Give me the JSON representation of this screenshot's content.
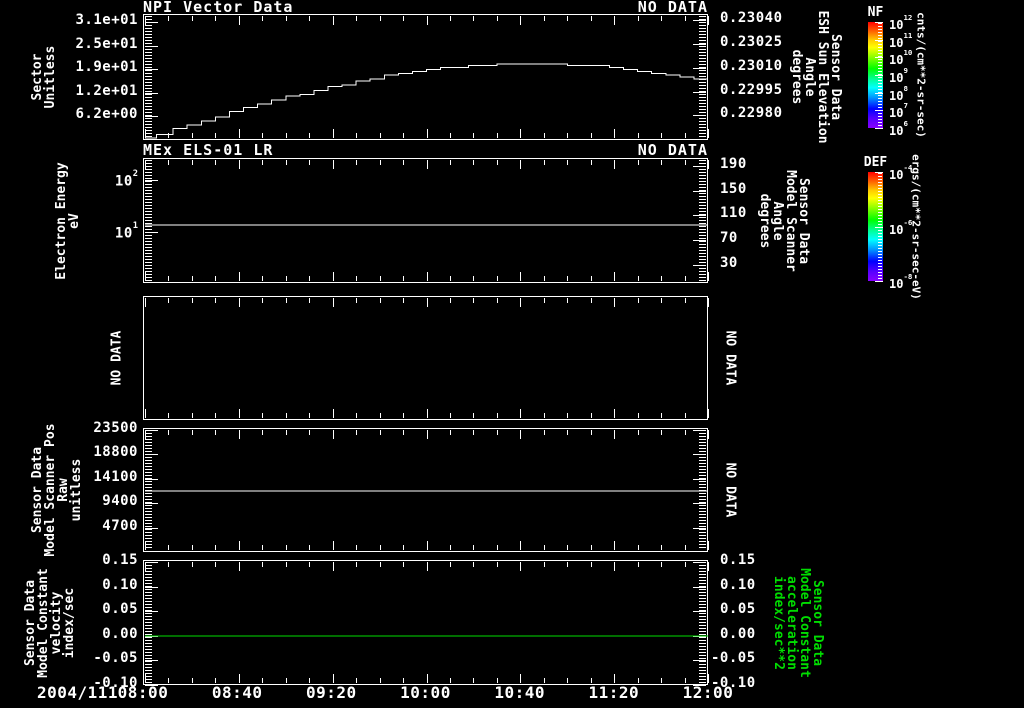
{
  "colors": {
    "fg": "#ffffff",
    "bg": "#000000",
    "accent_green": "#00dd00"
  },
  "panels": [
    {
      "id": "npi-vector-data",
      "title": "NPI Vector Data",
      "status_right": "NO DATA",
      "left_axis_title_lines": [
        "Sector",
        "Unitless"
      ],
      "right_axis_title_lines": [
        "Sensor Data",
        "ESH Sun Elevation",
        "Angle",
        "degrees"
      ],
      "left_tick_labels": [
        "3.1e+01",
        "2.5e+01",
        "1.9e+01",
        "1.2e+01",
        "6.2e+00"
      ],
      "right_tick_labels": [
        "0.23040",
        "0.23025",
        "0.23010",
        "0.22995",
        "0.22980"
      ]
    },
    {
      "id": "mex-els-01-lr",
      "title": "MEx ELS-01 LR",
      "status_right": "NO DATA",
      "left_axis_title_lines": [
        "Electron Energy",
        "eV"
      ],
      "right_axis_title_lines": [
        "Sensor Data",
        "Model Scanner",
        "Angle",
        "degrees"
      ],
      "left_tick_labels": [
        "10^2",
        "10^1"
      ],
      "right_tick_labels": [
        "190",
        "150",
        "110",
        "70",
        "30"
      ]
    },
    {
      "id": "no-data-panel",
      "left_rotated_status": "NO DATA",
      "right_rotated_status": "NO DATA"
    },
    {
      "id": "model-scanner-pos",
      "left_axis_title_lines": [
        "Sensor Data",
        "Model Scanner Pos",
        "Raw",
        "unitless"
      ],
      "left_tick_labels": [
        "23500",
        "18800",
        "14100",
        "9400",
        "4700"
      ],
      "right_rotated_status": "NO DATA"
    },
    {
      "id": "model-constant",
      "left_axis_title_lines": [
        "Sensor Data",
        "Model Constant",
        "velocity",
        "index/sec"
      ],
      "right_axis_title_lines": [
        "Sensor Data",
        "Model Constant",
        "acceleration",
        "index/sec**2"
      ],
      "right_axis_title_green": true,
      "left_tick_labels": [
        "0.15",
        "0.10",
        "0.05",
        "0.00",
        "-0.05",
        "-0.10"
      ],
      "right_tick_labels": [
        "0.15",
        "0.10",
        "0.05",
        "0.00",
        "-0.05",
        "-0.10"
      ]
    }
  ],
  "colorbars": [
    {
      "title": "NF",
      "tick_labels": [
        "10^12",
        "10^11",
        "10^10",
        "10^9",
        "10^8",
        "10^7",
        "10^6"
      ],
      "units": "cnts/(cm**2-sr-sec)"
    },
    {
      "title": "DEF",
      "tick_labels": [
        "10^-4",
        "10^-6",
        "10^-8"
      ],
      "units": "ergs/(cm**2-sr-sec-eV)"
    }
  ],
  "chart_data": {
    "type": "line",
    "subtype": "multi-panel-time-series",
    "x": {
      "date_label": "2004/111",
      "range_hours": [
        8,
        12
      ],
      "tick_labels": [
        "08:00",
        "08:40",
        "09:20",
        "10:00",
        "10:40",
        "11:20",
        "12:00"
      ],
      "minor_tick_minutes": 10
    },
    "panels": [
      {
        "title": "NPI Vector Data",
        "yscale": "linear",
        "ylim": [
          0,
          32.55
        ],
        "ytick_values": [
          31,
          24.8,
          18.6,
          12.4,
          6.2
        ],
        "right_ylim": [
          0.229645,
          0.230425
        ],
        "right_ytick_values": [
          0.2304,
          0.23025,
          0.2301,
          0.22995,
          0.2298
        ],
        "series": [
          {
            "name": "sector-stepped-arc",
            "color": "#ffffff",
            "step": true,
            "points": [
              [
                8.0,
                0.5
              ],
              [
                8.08,
                1.5
              ],
              [
                8.2,
                3.0
              ],
              [
                8.3,
                4.0
              ],
              [
                8.4,
                5.0
              ],
              [
                8.5,
                6.0
              ],
              [
                8.6,
                7.5
              ],
              [
                8.7,
                8.5
              ],
              [
                8.8,
                9.5
              ],
              [
                8.9,
                10.5
              ],
              [
                9.0,
                11.5
              ],
              [
                9.1,
                12.0
              ],
              [
                9.2,
                13.0
              ],
              [
                9.3,
                14.0
              ],
              [
                9.4,
                14.5
              ],
              [
                9.5,
                15.5
              ],
              [
                9.6,
                16.0
              ],
              [
                9.7,
                17.0
              ],
              [
                9.8,
                17.5
              ],
              [
                9.9,
                18.0
              ],
              [
                10.0,
                18.5
              ],
              [
                10.1,
                19.0
              ],
              [
                10.3,
                19.5
              ],
              [
                10.5,
                20.0
              ],
              [
                10.9,
                20.0
              ],
              [
                11.0,
                19.5
              ],
              [
                11.3,
                19.0
              ],
              [
                11.4,
                18.5
              ],
              [
                11.5,
                18.0
              ],
              [
                11.6,
                17.5
              ],
              [
                11.7,
                17.0
              ],
              [
                11.8,
                16.5
              ],
              [
                11.9,
                16.0
              ],
              [
                12.0,
                15.0
              ]
            ]
          }
        ]
      },
      {
        "title": "MEx ELS-01 LR",
        "yscale": "log",
        "ylim": [
          1.05,
          240
        ],
        "ytick_values": [
          100,
          10
        ],
        "right_ylim": [
          0,
          200
        ],
        "right_ytick_values": [
          190,
          150,
          110,
          70,
          30
        ],
        "series": [
          {
            "name": "constant-energy-line",
            "color": "#ffffff",
            "const_y": 13.5
          }
        ]
      },
      {
        "title": "NO DATA",
        "no_axis": true,
        "series": []
      },
      {
        "title": "Sensor Data Model Scanner Pos",
        "yscale": "linear",
        "ylim": [
          0,
          23500
        ],
        "ytick_values": [
          23500,
          18800,
          14100,
          9400,
          4700
        ],
        "mirror_right_ticks": true,
        "series": [
          {
            "name": "scanner-pos-constant",
            "color": "#ffffff",
            "const_y": 11750
          }
        ]
      },
      {
        "title": "Sensor Data Model Constant",
        "yscale": "linear",
        "ylim": [
          -0.1,
          0.15
        ],
        "ytick_values": [
          0.15,
          0.1,
          0.05,
          0,
          -0.05,
          -0.1
        ],
        "right_ylim": [
          -0.1,
          0.15
        ],
        "right_ytick_values": [
          0.15,
          0.1,
          0.05,
          0,
          -0.05,
          -0.1
        ],
        "series": [
          {
            "name": "acceleration-constant",
            "color": "#00dd00",
            "const_y": 0
          }
        ]
      }
    ]
  }
}
